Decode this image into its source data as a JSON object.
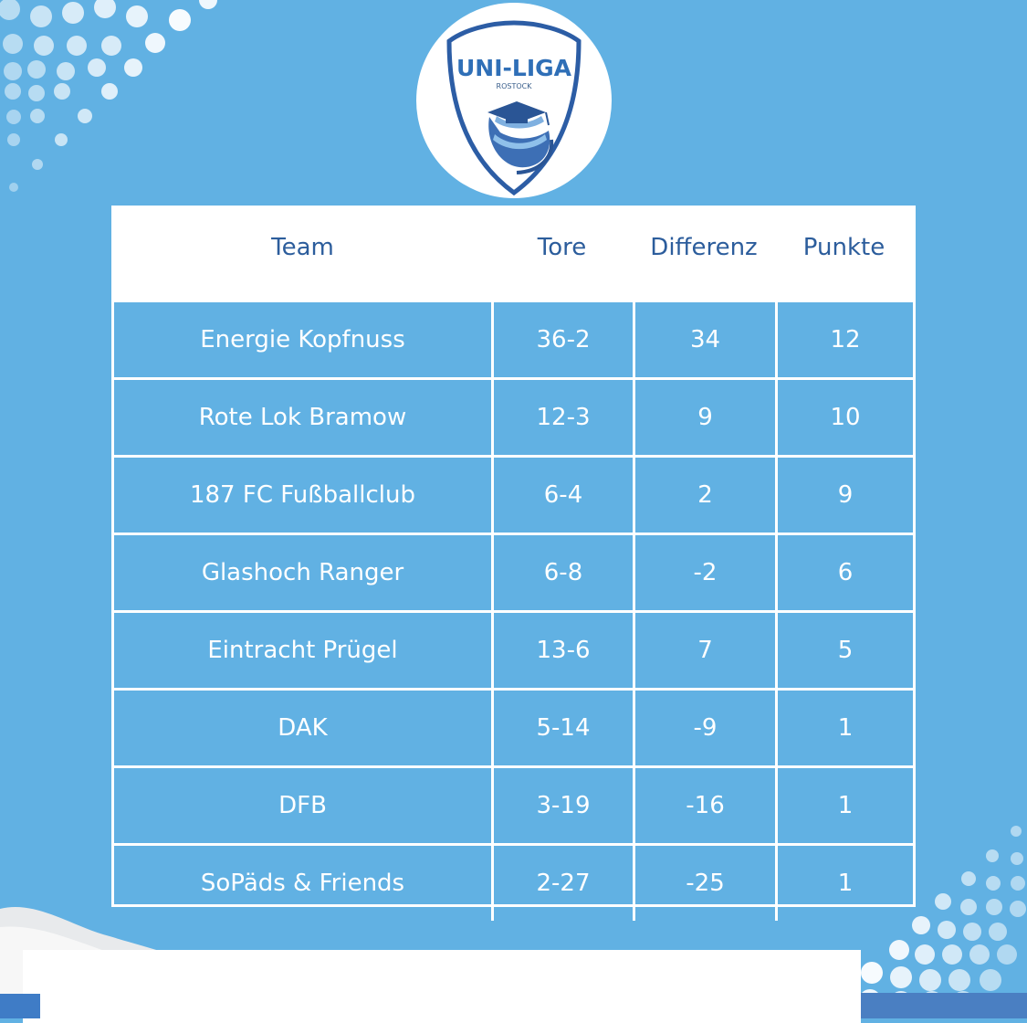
{
  "logo": {
    "title": "UNI-LIGA",
    "subtitle": "ROSTOCK",
    "icon": "graduation-cap-ball-icon"
  },
  "colors": {
    "background": "#61b1e3",
    "header_text": "#2c5d9c",
    "cell_text": "#ffffff",
    "lines": "#ffffff"
  },
  "table": {
    "headers": [
      "Team",
      "Tore",
      "Differenz",
      "Punkte"
    ],
    "rows": [
      [
        "Energie Kopfnuss",
        "36-2",
        "34",
        "12"
      ],
      [
        "Rote Lok Bramow",
        "12-3",
        "9",
        "10"
      ],
      [
        "187 FC Fußballclub",
        "6-4",
        "2",
        "9"
      ],
      [
        "Glashoch Ranger",
        "6-8",
        "-2",
        "6"
      ],
      [
        "Eintracht Prügel",
        "13-6",
        "7",
        "5"
      ],
      [
        "DAK",
        "5-14",
        "-9",
        "1"
      ],
      [
        "DFB",
        "3-19",
        "-16",
        "1"
      ],
      [
        "SoPäds & Friends",
        "2-27",
        "-25",
        "1"
      ]
    ]
  }
}
